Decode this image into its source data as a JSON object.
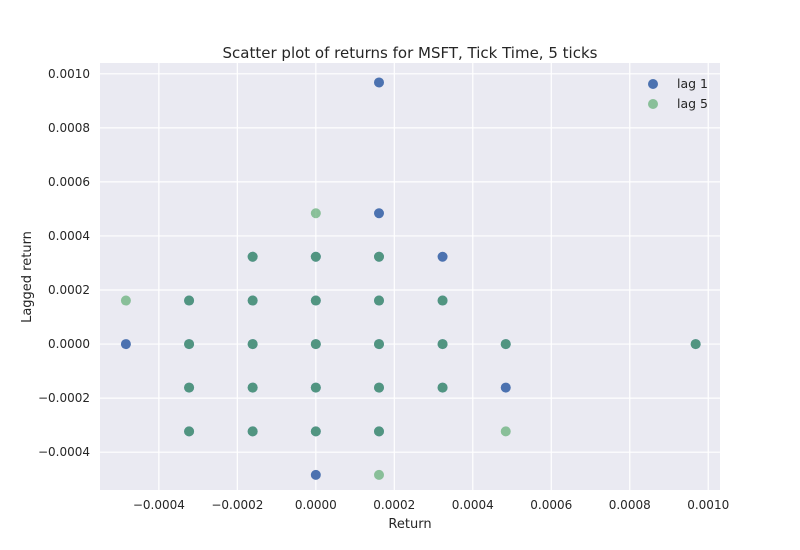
{
  "chart_data": {
    "type": "scatter",
    "title": "Scatter plot of returns for MSFT, Tick Time, 5 ticks",
    "xlabel": "Return",
    "ylabel": "Lagged return",
    "xlim": [
      -0.00055,
      0.00103
    ],
    "ylim": [
      -0.00054,
      0.00104
    ],
    "xticks": [
      -0.0004,
      -0.0002,
      0.0,
      0.0002,
      0.0004,
      0.0006,
      0.0008,
      0.001
    ],
    "xtick_labels": [
      "−0.0004",
      "−0.0002",
      "0.0000",
      "0.0002",
      "0.0004",
      "0.0006",
      "0.0008",
      "0.0010"
    ],
    "yticks": [
      -0.0004,
      -0.0002,
      0.0,
      0.0002,
      0.0004,
      0.0006,
      0.0008,
      0.001
    ],
    "ytick_labels": [
      "−0.0004",
      "−0.0002",
      "0.0000",
      "0.0002",
      "0.0004",
      "0.0006",
      "0.0008",
      "0.0010"
    ],
    "grid": true,
    "legend_position": "top-right",
    "background": "#EAEAF2",
    "series": [
      {
        "name": "lag 1",
        "color": "#4C72B0",
        "points": [
          [
            -0.000484,
            0.0
          ],
          [
            -0.000323,
            0.000161
          ],
          [
            -0.000323,
            0.0
          ],
          [
            -0.000323,
            -0.000161
          ],
          [
            -0.000323,
            -0.000323
          ],
          [
            -0.000161,
            0.000323
          ],
          [
            -0.000161,
            0.000161
          ],
          [
            -0.000161,
            0.0
          ],
          [
            -0.000161,
            -0.000161
          ],
          [
            -0.000161,
            -0.000323
          ],
          [
            0.0,
            0.000323
          ],
          [
            0.0,
            0.000161
          ],
          [
            0.0,
            0.0
          ],
          [
            0.0,
            -0.000161
          ],
          [
            0.0,
            -0.000323
          ],
          [
            0.0,
            -0.000484
          ],
          [
            0.000161,
            0.000968
          ],
          [
            0.000161,
            0.000484
          ],
          [
            0.000161,
            0.000323
          ],
          [
            0.000161,
            0.000161
          ],
          [
            0.000161,
            0.0
          ],
          [
            0.000161,
            -0.000161
          ],
          [
            0.000161,
            -0.000323
          ],
          [
            0.000323,
            0.000323
          ],
          [
            0.000323,
            0.000161
          ],
          [
            0.000323,
            0.0
          ],
          [
            0.000323,
            -0.000161
          ],
          [
            0.000484,
            0.0
          ],
          [
            0.000484,
            -0.000161
          ],
          [
            0.000968,
            0.0
          ]
        ]
      },
      {
        "name": "lag 5",
        "color": "#55A868",
        "points": [
          [
            -0.000484,
            0.000161
          ],
          [
            -0.000323,
            0.000161
          ],
          [
            -0.000323,
            0.0
          ],
          [
            -0.000323,
            -0.000161
          ],
          [
            -0.000323,
            -0.000323
          ],
          [
            -0.000161,
            0.000323
          ],
          [
            -0.000161,
            0.000161
          ],
          [
            -0.000161,
            0.0
          ],
          [
            -0.000161,
            -0.000161
          ],
          [
            -0.000161,
            -0.000323
          ],
          [
            0.0,
            0.000484
          ],
          [
            0.0,
            0.000323
          ],
          [
            0.0,
            0.000161
          ],
          [
            0.0,
            0.0
          ],
          [
            0.0,
            -0.000161
          ],
          [
            0.0,
            -0.000323
          ],
          [
            0.000161,
            0.000323
          ],
          [
            0.000161,
            0.000161
          ],
          [
            0.000161,
            0.0
          ],
          [
            0.000161,
            -0.000161
          ],
          [
            0.000161,
            -0.000323
          ],
          [
            0.000161,
            -0.000484
          ],
          [
            0.000323,
            0.000161
          ],
          [
            0.000323,
            0.0
          ],
          [
            0.000323,
            -0.000161
          ],
          [
            0.000484,
            0.0
          ],
          [
            0.000484,
            -0.000323
          ],
          [
            0.000968,
            0.0
          ]
        ]
      }
    ]
  }
}
